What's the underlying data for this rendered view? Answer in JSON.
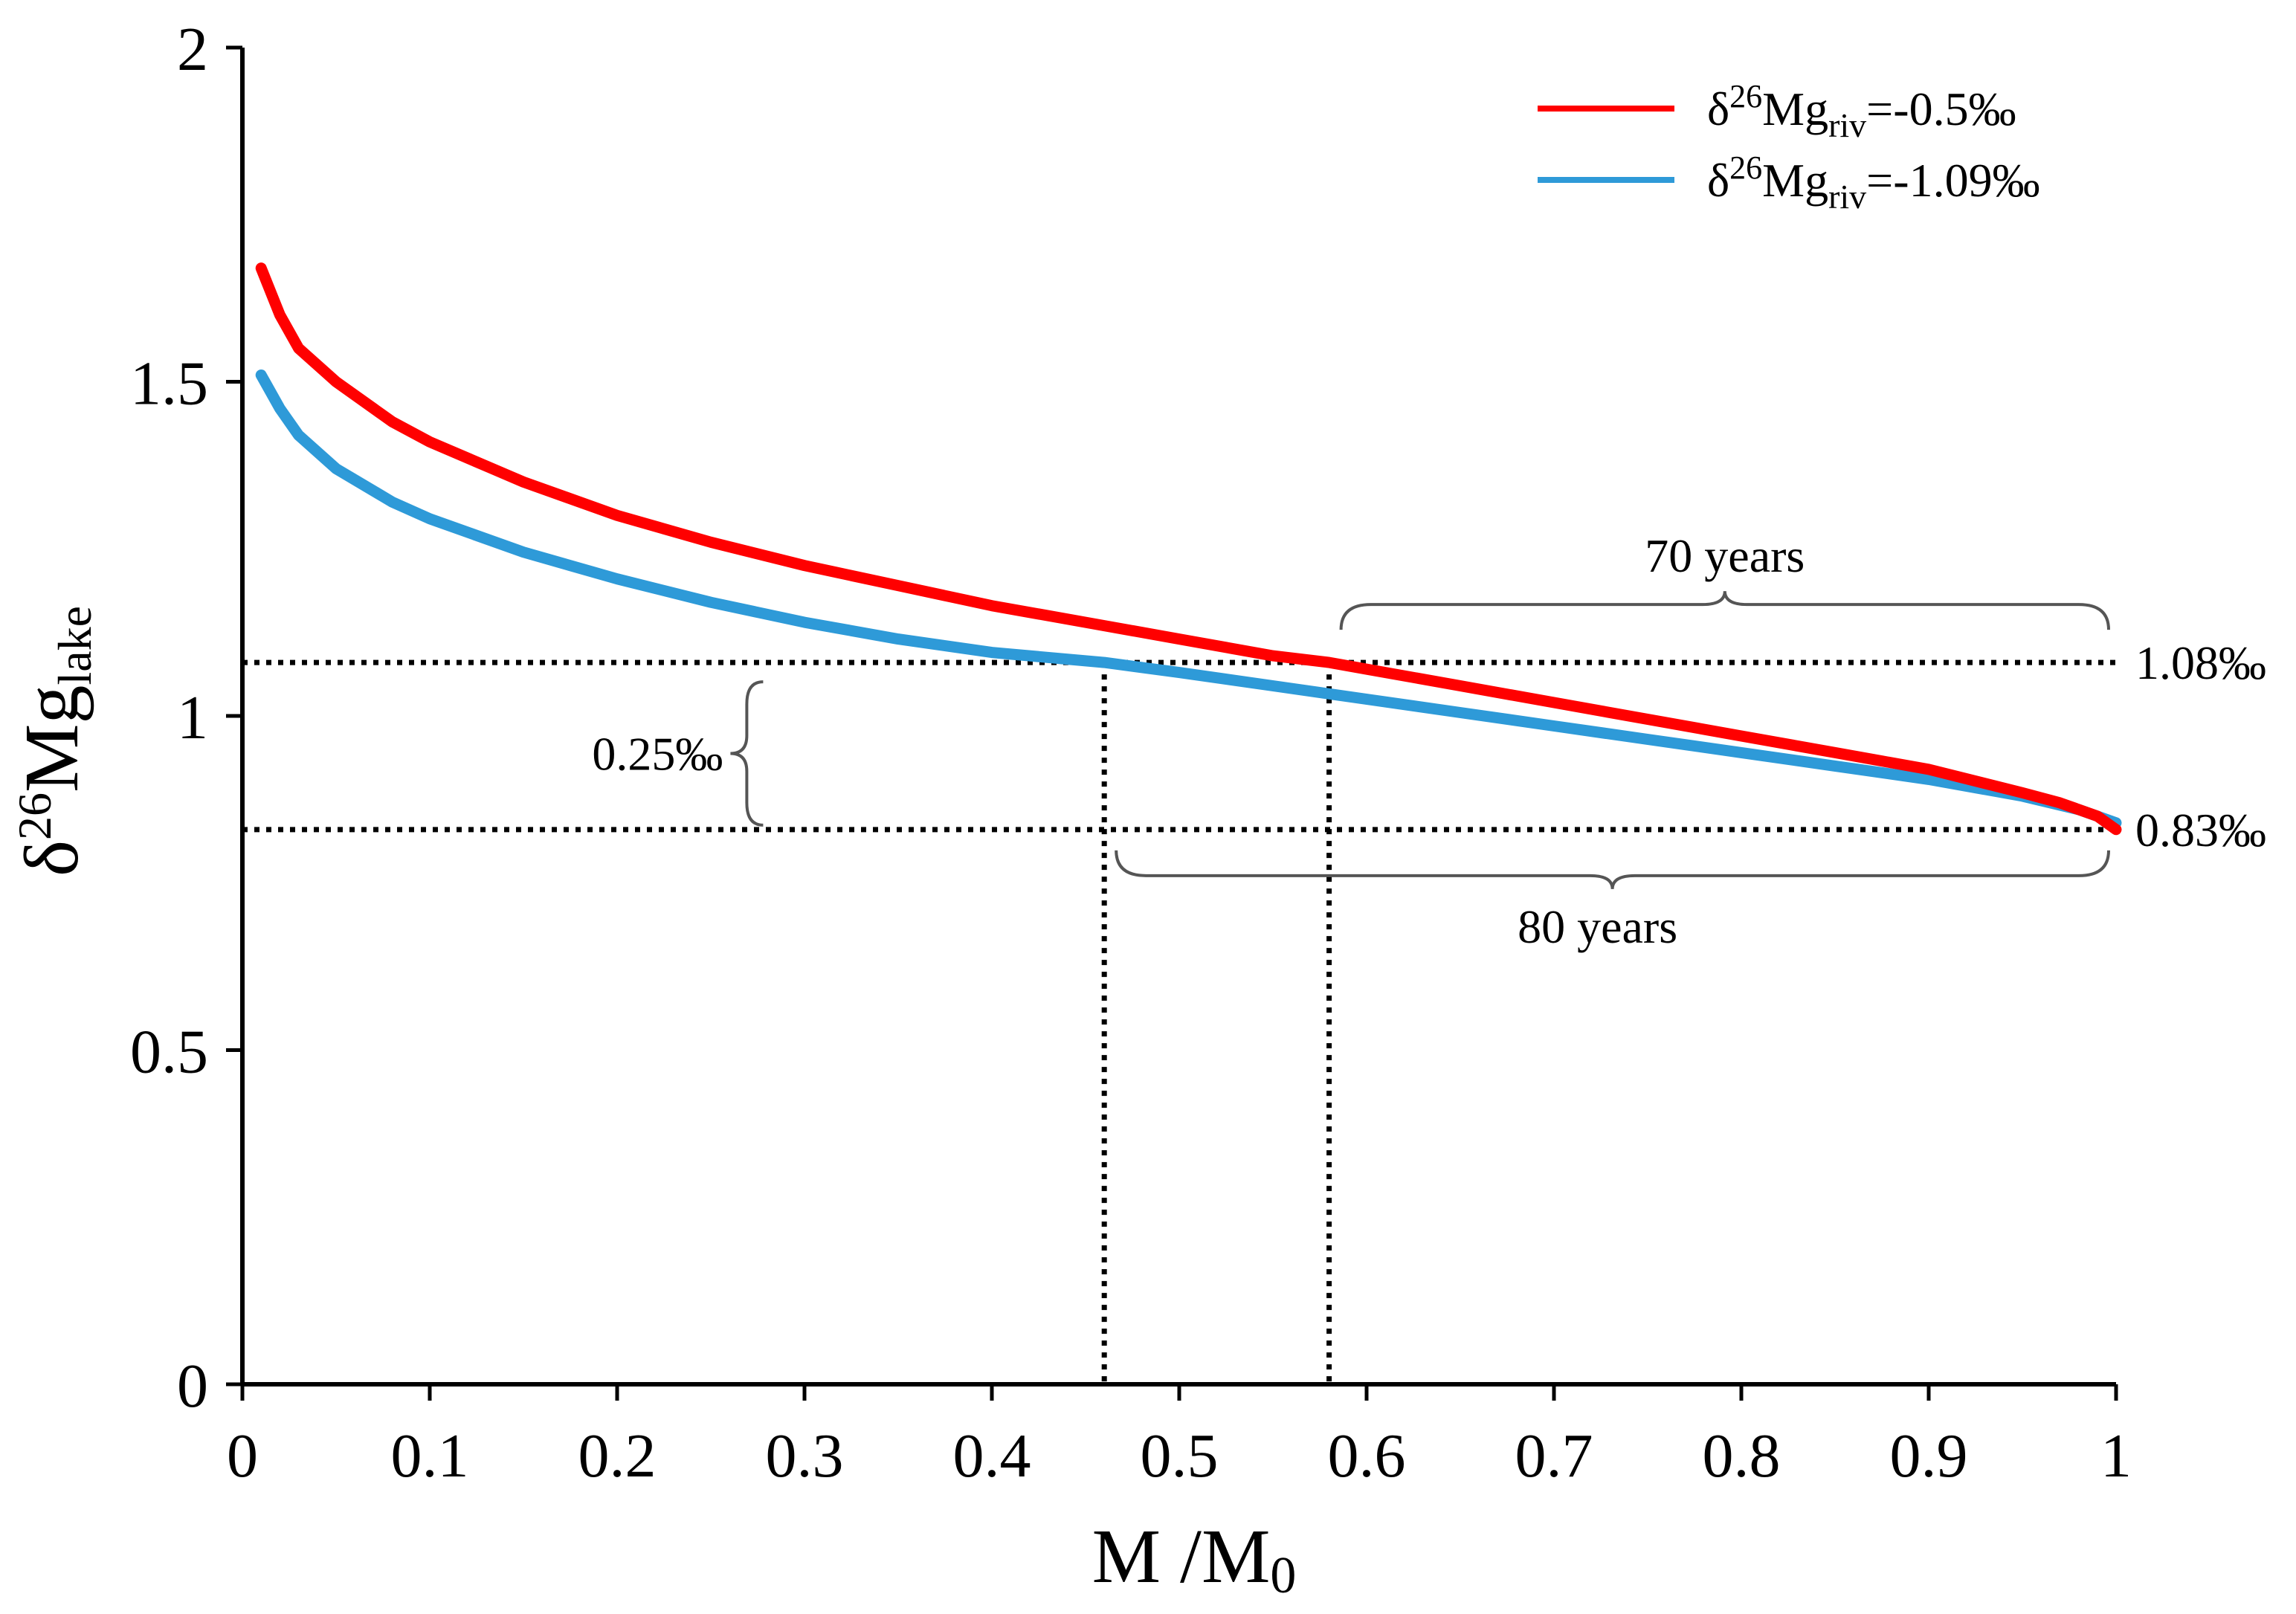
{
  "chart_data": {
    "type": "line",
    "xlabel": "M /M0",
    "xlabel_parts": {
      "main": "M /M",
      "sub": "0"
    },
    "ylabel": "δ26Mglake",
    "ylabel_parts": {
      "pre": "δ",
      "sup": "26",
      "main": "Mg",
      "sub": "lake"
    },
    "xlim": [
      0,
      1
    ],
    "ylim": [
      0,
      2
    ],
    "x_ticks": [
      0,
      0.1,
      0.2,
      0.3,
      0.4,
      0.5,
      0.6,
      0.7,
      0.8,
      0.9,
      1
    ],
    "x_tick_labels": [
      "0",
      "0.1",
      "0.2",
      "0.3",
      "0.4",
      "0.5",
      "0.6",
      "0.7",
      "0.8",
      "0.9",
      "1"
    ],
    "y_ticks": [
      0,
      0.5,
      1,
      1.5,
      2
    ],
    "y_tick_labels": [
      "0",
      "0.5",
      "1",
      "1.5",
      "2"
    ],
    "grid": false,
    "legend_position": "top-right",
    "series": [
      {
        "name": "δ26Mgriv=-0.5‰",
        "label_parts": {
          "pre": "δ",
          "sup": "26",
          "main": "Mg",
          "sub": "riv",
          "post": "=-0.5‰"
        },
        "color": "#ff0000",
        "x": [
          0.01,
          0.02,
          0.03,
          0.05,
          0.08,
          0.1,
          0.15,
          0.2,
          0.25,
          0.3,
          0.35,
          0.4,
          0.45,
          0.5,
          0.55,
          0.58,
          0.6,
          0.65,
          0.7,
          0.75,
          0.8,
          0.85,
          0.9,
          0.95,
          0.97,
          0.99,
          1.0
        ],
        "y": [
          1.67,
          1.6,
          1.55,
          1.5,
          1.44,
          1.41,
          1.35,
          1.3,
          1.26,
          1.225,
          1.195,
          1.165,
          1.14,
          1.115,
          1.09,
          1.08,
          1.07,
          1.045,
          1.02,
          0.995,
          0.97,
          0.945,
          0.92,
          0.885,
          0.87,
          0.85,
          0.83
        ]
      },
      {
        "name": "δ26Mgriv=-1.09‰",
        "label_parts": {
          "pre": "δ",
          "sup": "26",
          "main": "Mg",
          "sub": "riv",
          "post": "=-1.09‰"
        },
        "color": "#2e9ad8",
        "x": [
          0.01,
          0.02,
          0.03,
          0.05,
          0.08,
          0.1,
          0.15,
          0.2,
          0.25,
          0.3,
          0.35,
          0.4,
          0.46,
          0.5,
          0.55,
          0.6,
          0.65,
          0.7,
          0.75,
          0.8,
          0.85,
          0.9,
          0.95,
          0.98,
          1.0
        ],
        "y": [
          1.51,
          1.46,
          1.42,
          1.37,
          1.32,
          1.295,
          1.245,
          1.205,
          1.17,
          1.14,
          1.115,
          1.095,
          1.08,
          1.065,
          1.045,
          1.025,
          1.005,
          0.985,
          0.965,
          0.945,
          0.925,
          0.905,
          0.88,
          0.86,
          0.84
        ]
      }
    ],
    "reference_lines": {
      "horizontal": [
        1.08,
        0.83
      ],
      "vertical": [
        {
          "x": 0.46,
          "y_top": 1.08
        },
        {
          "x": 0.58,
          "y_top": 1.08
        }
      ],
      "style": "dotted",
      "color": "#000000"
    },
    "annotations": [
      {
        "text": "1.08‰",
        "x": 1.0,
        "y": 1.08,
        "role": "right-label"
      },
      {
        "text": "0.83‰",
        "x": 1.0,
        "y": 0.83,
        "role": "right-label"
      },
      {
        "text": "70 years",
        "x_from": 0.58,
        "x_to": 1.0,
        "y": 1.08,
        "role": "brace-above"
      },
      {
        "text": "80 years",
        "x_from": 0.46,
        "x_to": 1.0,
        "y": 0.83,
        "role": "brace-below"
      },
      {
        "text": "0.25‰",
        "y_from": 0.83,
        "y_to": 1.08,
        "x": 0.27,
        "role": "brace-left"
      }
    ]
  }
}
